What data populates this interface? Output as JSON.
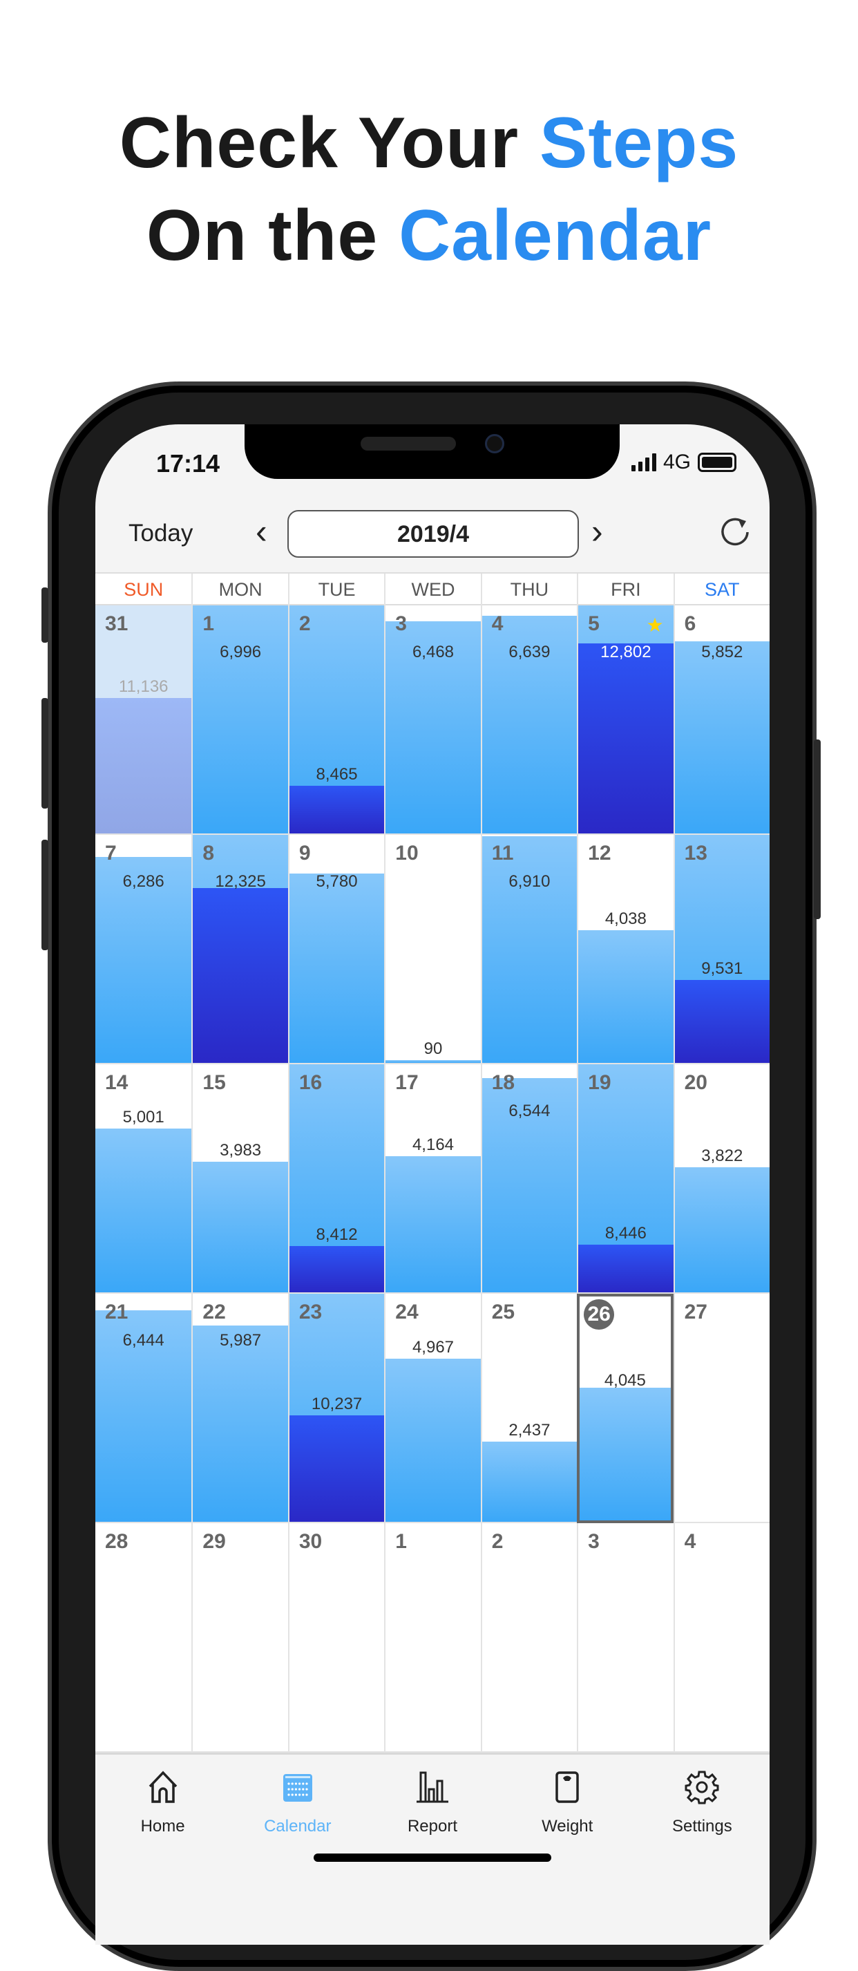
{
  "headline": {
    "line1_prefix": "Check Your ",
    "line1_accent": "Steps",
    "line2_prefix": "On the ",
    "line2_accent": "Calendar"
  },
  "status_bar": {
    "time": "17:14",
    "network": "4G"
  },
  "header": {
    "today_label": "Today",
    "month": "2019/4",
    "prev_icon": "chevron-left-icon",
    "next_icon": "chevron-right-icon",
    "refresh_icon": "refresh-icon"
  },
  "weekdays": [
    "SUN",
    "MON",
    "TUE",
    "WED",
    "THU",
    "FRI",
    "SAT"
  ],
  "colors": {
    "sunday": "#f05a28",
    "saturday": "#2a7cf0",
    "accent": "#5eb4f8"
  },
  "days": [
    {
      "day": "31",
      "steps": 11136,
      "label": "11,136",
      "state": "prev"
    },
    {
      "day": "1",
      "steps": 6996,
      "label": "6,996"
    },
    {
      "day": "2",
      "steps": 8465,
      "label": "8,465"
    },
    {
      "day": "3",
      "steps": 6468,
      "label": "6,468"
    },
    {
      "day": "4",
      "steps": 6639,
      "label": "6,639"
    },
    {
      "day": "5",
      "steps": 12802,
      "label": "12,802",
      "star": true
    },
    {
      "day": "6",
      "steps": 5852,
      "label": "5,852"
    },
    {
      "day": "7",
      "steps": 6286,
      "label": "6,286"
    },
    {
      "day": "8",
      "steps": 12325,
      "label": "12,325"
    },
    {
      "day": "9",
      "steps": 5780,
      "label": "5,780"
    },
    {
      "day": "10",
      "steps": 90,
      "label": "90"
    },
    {
      "day": "11",
      "steps": 6910,
      "label": "6,910"
    },
    {
      "day": "12",
      "steps": 4038,
      "label": "4,038"
    },
    {
      "day": "13",
      "steps": 9531,
      "label": "9,531"
    },
    {
      "day": "14",
      "steps": 5001,
      "label": "5,001"
    },
    {
      "day": "15",
      "steps": 3983,
      "label": "3,983"
    },
    {
      "day": "16",
      "steps": 8412,
      "label": "8,412"
    },
    {
      "day": "17",
      "steps": 4164,
      "label": "4,164"
    },
    {
      "day": "18",
      "steps": 6544,
      "label": "6,544"
    },
    {
      "day": "19",
      "steps": 8446,
      "label": "8,446"
    },
    {
      "day": "20",
      "steps": 3822,
      "label": "3,822"
    },
    {
      "day": "21",
      "steps": 6444,
      "label": "6,444"
    },
    {
      "day": "22",
      "steps": 5987,
      "label": "5,987"
    },
    {
      "day": "23",
      "steps": 10237,
      "label": "10,237"
    },
    {
      "day": "24",
      "steps": 4967,
      "label": "4,967"
    },
    {
      "day": "25",
      "steps": 2437,
      "label": "2,437"
    },
    {
      "day": "26",
      "steps": 4045,
      "label": "4,045",
      "state": "today"
    },
    {
      "day": "27"
    },
    {
      "day": "28"
    },
    {
      "day": "29"
    },
    {
      "day": "30"
    },
    {
      "day": "1",
      "state": "next"
    },
    {
      "day": "2",
      "state": "next"
    },
    {
      "day": "3",
      "state": "next"
    },
    {
      "day": "4",
      "state": "next"
    }
  ],
  "tabs": [
    {
      "label": "Home",
      "icon": "home-icon"
    },
    {
      "label": "Calendar",
      "icon": "calendar-icon",
      "active": true
    },
    {
      "label": "Report",
      "icon": "bar-chart-icon"
    },
    {
      "label": "Weight",
      "icon": "scale-icon"
    },
    {
      "label": "Settings",
      "icon": "gear-icon"
    }
  ]
}
